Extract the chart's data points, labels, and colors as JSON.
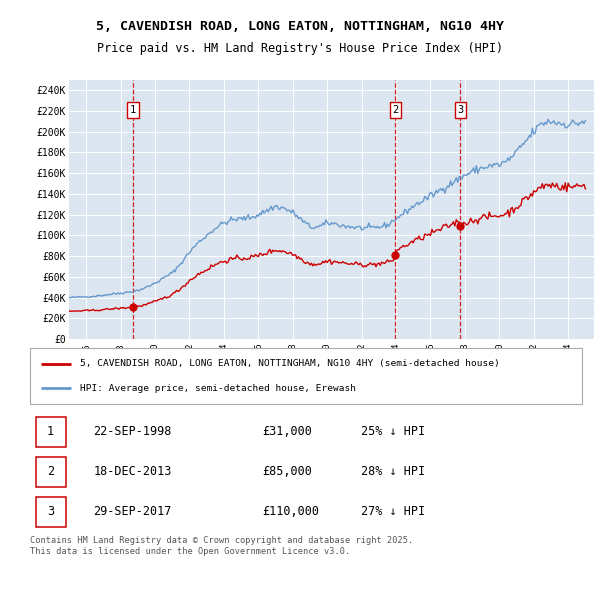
{
  "title_line1": "5, CAVENDISH ROAD, LONG EATON, NOTTINGHAM, NG10 4HY",
  "title_line2": "Price paid vs. HM Land Registry's House Price Index (HPI)",
  "ylabel_ticks": [
    "£0",
    "£20K",
    "£40K",
    "£60K",
    "£80K",
    "£100K",
    "£120K",
    "£140K",
    "£160K",
    "£180K",
    "£200K",
    "£220K",
    "£240K"
  ],
  "ytick_values": [
    0,
    20000,
    40000,
    60000,
    80000,
    100000,
    120000,
    140000,
    160000,
    180000,
    200000,
    220000,
    240000
  ],
  "transactions": [
    {
      "num": 1,
      "date": "22-SEP-1998",
      "price": "£31,000",
      "pct": "25% ↓ HPI",
      "year": 1998.72
    },
    {
      "num": 2,
      "date": "18-DEC-2013",
      "price": "£85,000",
      "pct": "28% ↓ HPI",
      "year": 2013.96
    },
    {
      "num": 3,
      "date": "29-SEP-2017",
      "price": "£110,000",
      "pct": "27% ↓ HPI",
      "year": 2017.74
    }
  ],
  "legend_price": "5, CAVENDISH ROAD, LONG EATON, NOTTINGHAM, NG10 4HY (semi-detached house)",
  "legend_hpi": "HPI: Average price, semi-detached house, Erewash",
  "footer": "Contains HM Land Registry data © Crown copyright and database right 2025.\nThis data is licensed under the Open Government Licence v3.0.",
  "price_color": "#cc0000",
  "hpi_color": "#6699cc",
  "plot_bg_color": "#dce6f1",
  "xmin": 1995.0,
  "xmax": 2025.5,
  "ymin": 0,
  "ymax": 250000,
  "hpi_anchors": [
    [
      1995.0,
      40000
    ],
    [
      1995.5,
      40500
    ],
    [
      1996.0,
      41000
    ],
    [
      1996.5,
      41500
    ],
    [
      1997.0,
      42500
    ],
    [
      1997.5,
      43500
    ],
    [
      1998.0,
      44500
    ],
    [
      1998.5,
      45500
    ],
    [
      1999.0,
      47000
    ],
    [
      1999.5,
      50000
    ],
    [
      2000.0,
      54000
    ],
    [
      2000.5,
      59000
    ],
    [
      2001.0,
      64000
    ],
    [
      2001.5,
      73000
    ],
    [
      2002.0,
      84000
    ],
    [
      2002.5,
      93000
    ],
    [
      2003.0,
      100000
    ],
    [
      2003.5,
      107000
    ],
    [
      2004.0,
      112000
    ],
    [
      2004.5,
      115000
    ],
    [
      2005.0,
      116000
    ],
    [
      2005.5,
      117000
    ],
    [
      2006.0,
      120000
    ],
    [
      2006.5,
      124000
    ],
    [
      2007.0,
      128000
    ],
    [
      2007.5,
      126000
    ],
    [
      2008.0,
      122000
    ],
    [
      2008.5,
      115000
    ],
    [
      2009.0,
      108000
    ],
    [
      2009.5,
      108000
    ],
    [
      2010.0,
      112000
    ],
    [
      2010.5,
      111000
    ],
    [
      2011.0,
      109000
    ],
    [
      2011.5,
      108000
    ],
    [
      2012.0,
      107000
    ],
    [
      2012.5,
      107000
    ],
    [
      2013.0,
      108000
    ],
    [
      2013.5,
      110000
    ],
    [
      2014.0,
      116000
    ],
    [
      2014.5,
      122000
    ],
    [
      2015.0,
      128000
    ],
    [
      2015.5,
      133000
    ],
    [
      2016.0,
      138000
    ],
    [
      2016.5,
      143000
    ],
    [
      2017.0,
      148000
    ],
    [
      2017.5,
      153000
    ],
    [
      2018.0,
      158000
    ],
    [
      2018.5,
      162000
    ],
    [
      2019.0,
      165000
    ],
    [
      2019.5,
      167000
    ],
    [
      2020.0,
      168000
    ],
    [
      2020.5,
      172000
    ],
    [
      2021.0,
      180000
    ],
    [
      2021.5,
      190000
    ],
    [
      2022.0,
      200000
    ],
    [
      2022.5,
      208000
    ],
    [
      2023.0,
      210000
    ],
    [
      2023.5,
      208000
    ],
    [
      2024.0,
      207000
    ],
    [
      2024.5,
      208000
    ],
    [
      2025.0,
      210000
    ]
  ],
  "sale1_price": 31000,
  "sale1_year": 1998.72,
  "sale2_price": 85000,
  "sale2_year": 2013.96,
  "sale3_price": 110000,
  "sale3_year": 2017.74
}
